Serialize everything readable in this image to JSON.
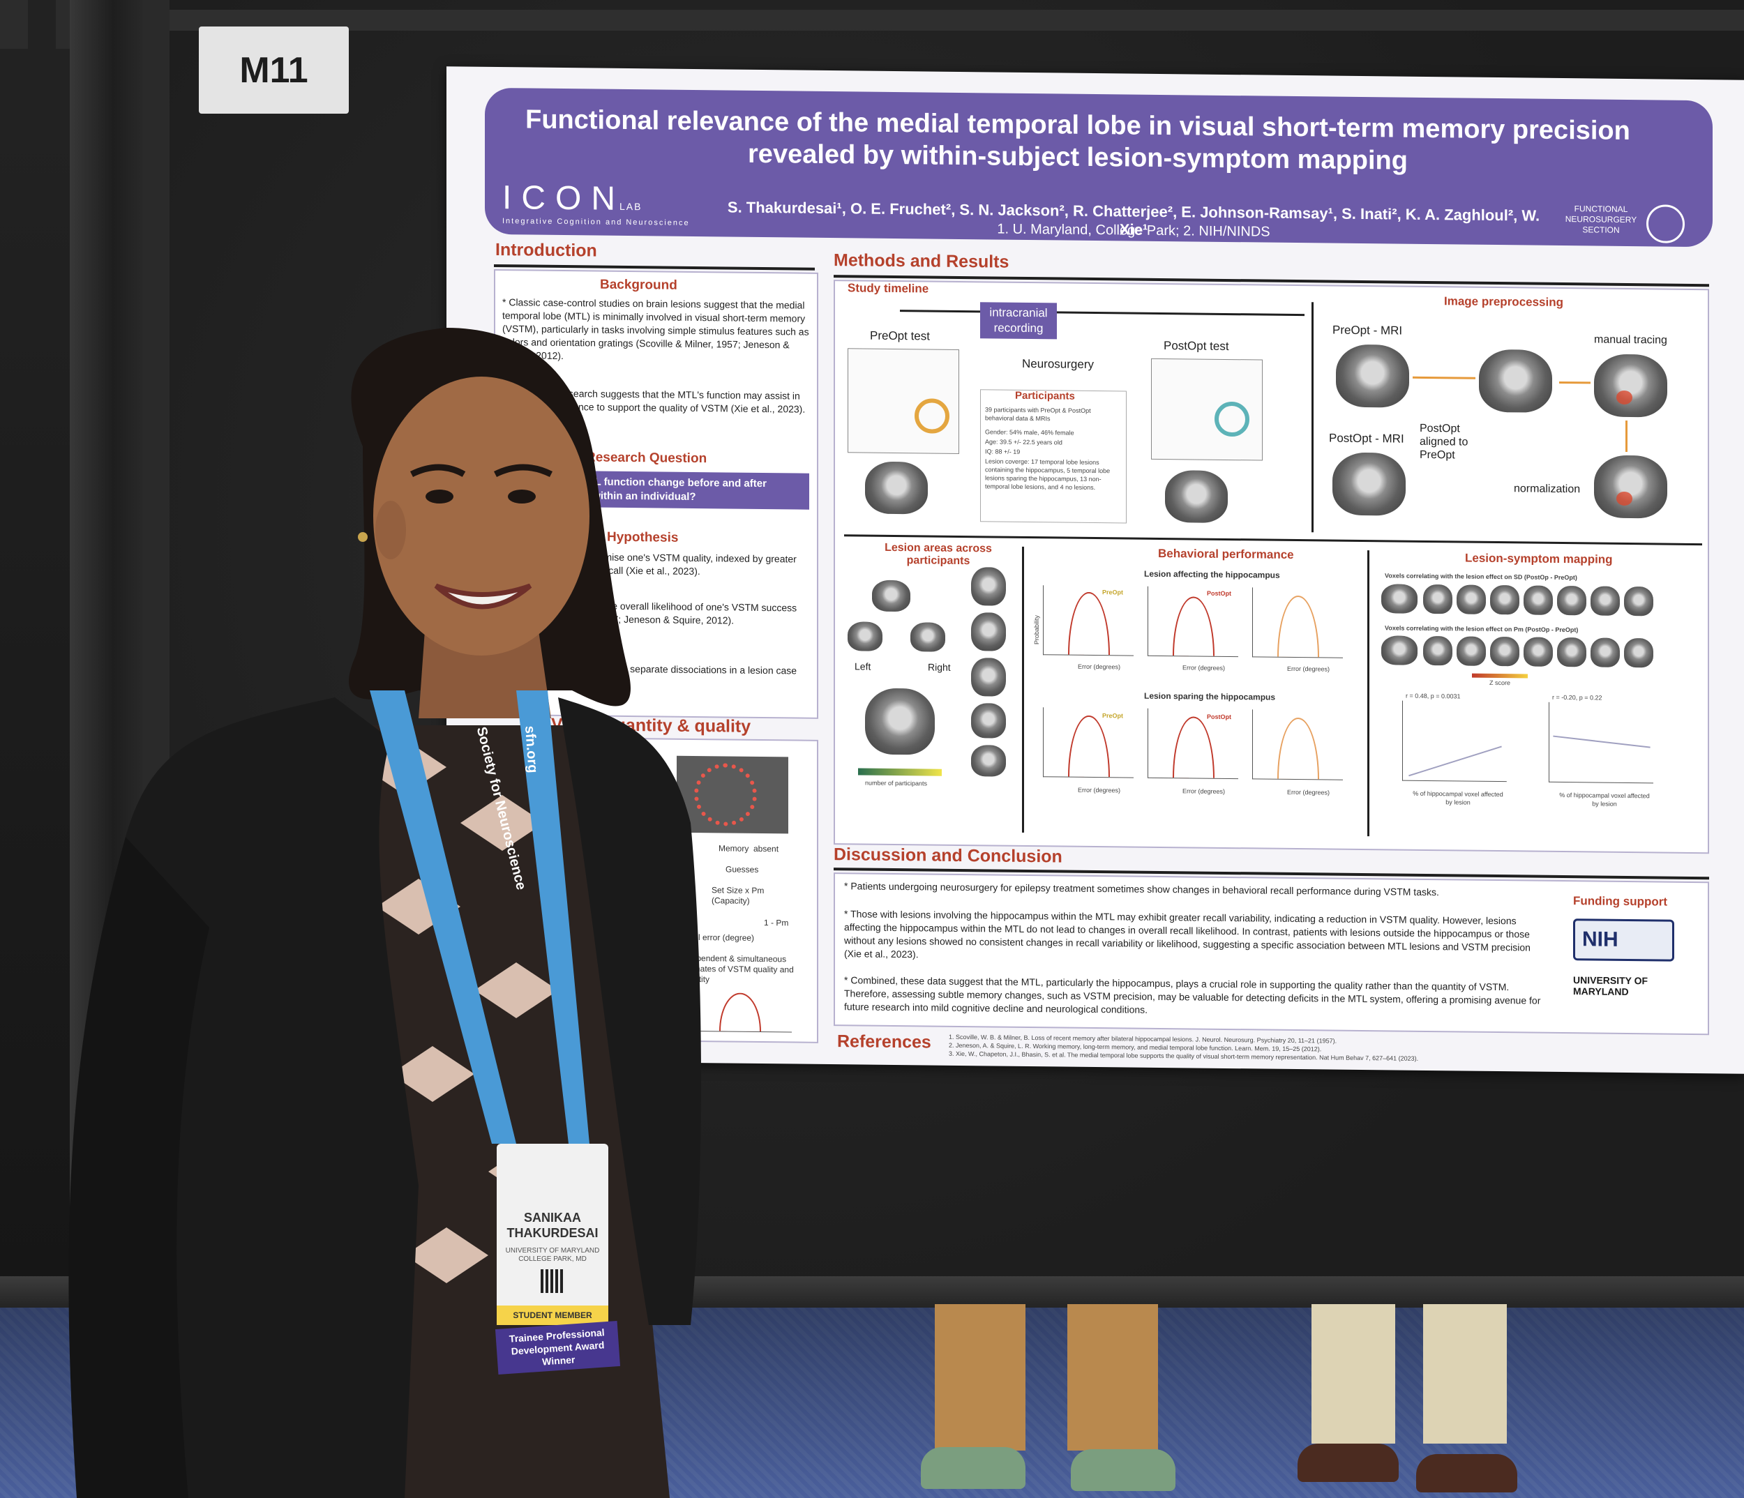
{
  "board_tag": "M11",
  "poster": {
    "title_line1": "Functional relevance of the medial temporal lobe in visual short-term memory precision",
    "title_line2": "revealed by within-subject lesion-symptom mapping",
    "authors": "S. Thakurdesai¹, O. E. Fruchet², S. N. Jackson², R. Chatterjee², E. Johnson-Ramsay¹, S. Inati², K. A. Zaghloul², W. Xie¹",
    "affiliations": "1. U. Maryland, College Park; 2. NIH/NINDS",
    "logo_left": "ICON",
    "logo_left_suffix": "LAB",
    "logo_left_sub": "Integrative Cognition and Neuroscience",
    "logo_right": "FUNCTIONAL NEUROSURGERY SECTION",
    "introduction": {
      "heading": "Introduction",
      "background_heading": "Background",
      "background_text_1": "* Classic case-control studies on brain lesions suggest that the medial temporal lobe (MTL) is minimally involved in visual short-term memory (VSTM), particularly in tasks involving simple stimulus features such as colors and orientation gratings (Scoville & Milner, 1957; Jeneson & Squire, 2012).",
      "background_text_2": "* Intracranial research suggests that the MTL's function may assist in reducing interference to support the quality of VSTM (Xie et al., 2023).",
      "research_question_heading": "Research Question",
      "research_question": "Does MTL function change before and after surgery within an individual?",
      "hypothesis_heading": "Hypothesis",
      "hypothesis_1": "MTL lesions compromise one's VSTM quality, indexed by greater variability in VSTM recall (Xie et al., 2023).",
      "hypothesis_2": "MTL lesions reduce the overall likelihood of one's VSTM success (Scoville & Milner, 1957; Jeneson & Squire, 2012).",
      "hypothesis_3": "These effects manifest as separate dissociations in a lesion case study.",
      "quantity_heading": "VSTM quantity & quality",
      "quantity_labels": [
        "Memory",
        "absent",
        "Guesses",
        "Set Size x Pm (Capacity)",
        "1 - Pm",
        "recall error (degree)",
        "Independent & simultaneous estimates of VSTM quality and quantity"
      ]
    },
    "methods": {
      "heading": "Methods and Results",
      "study_timeline": "Study timeline",
      "intracranial": "intracranial recording",
      "preopt_test": "PreOpt test",
      "postopt_test": "PostOpt test",
      "neurosurgery": "Neurosurgery",
      "participants_heading": "Participants",
      "participants": [
        "39 participants with PreOpt & PostOpt behavioral data & MRIs",
        "Gender: 54% male, 46% female",
        "Age: 39.5 +/- 22.5 years old",
        "IQ: 88 +/- 19",
        "Lesion coverge: 17 temporal lobe lesions containing the hippocampus, 5 temporal lobe lesions sparing the hippocampus, 13 non-temporal lobe lesions, and 4 no lesions."
      ],
      "image_preprocessing": "Image preprocessing",
      "preopt_mri": "PreOpt - MRI",
      "postopt_mri": "PostOpt - MRI",
      "aligned": "PostOpt aligned to PreOpt",
      "manual_tracing": "manual tracing",
      "normalization": "normalization",
      "lesion_areas": "Lesion areas across participants",
      "left": "Left",
      "right": "Right",
      "number_of_participants": "number of participants",
      "behavioral_performance": "Behavioral performance",
      "lesion_affecting": "Lesion affecting the hippocampus",
      "lesion_sparing": "Lesion sparing the hippocampus",
      "preopt": "PreOpt",
      "postopt": "PostOpt",
      "error_degrees": "Error (degrees)",
      "probability": "Probability",
      "lesion_symptom": "Lesion-symptom mapping",
      "voxels_sd": "Voxels correlating with the lesion effect on SD (PostOp - PreOpt)",
      "voxels_pm": "Voxels correlating with the lesion effect on Pm (PostOp - PreOpt)",
      "z_score": "Z score",
      "stat_1": "r = 0.48, p = 0.0031",
      "stat_2": "r = -0.20, p = 0.22",
      "x_label_hippo": "% of hippocampal voxel affected by lesion"
    },
    "discussion": {
      "heading": "Discussion and Conclusion",
      "point_1": "* Patients undergoing neurosurgery for epilepsy treatment sometimes show changes in behavioral recall performance during VSTM tasks.",
      "point_2": "* Those with lesions involving the hippocampus within the MTL may exhibit greater recall variability, indicating a reduction in VSTM quality. However, lesions affecting the hippocampus within the MTL do not lead to changes in overall recall likelihood. In contrast, patients with lesions outside the hippocampus or those without any lesions showed no consistent changes in recall variability or likelihood, suggesting a specific association between MTL lesions and VSTM precision (Xie et al., 2023).",
      "point_3": "* Combined, these data suggest that the MTL, particularly the hippocampus, plays a crucial role in supporting the quality rather than the quantity of VSTM. Therefore, assessing subtle memory changes, such as VSTM precision, may be valuable for detecting deficits in the MTL system, offering a promising avenue for future research into mild cognitive decline and neurological conditions.",
      "funding_heading": "Funding support",
      "funding_nih": "NIH",
      "funding_umd": "UNIVERSITY OF MARYLAND"
    },
    "references": {
      "heading": "References",
      "ref_1": "1. Scoville, W. B. & Milner, B. Loss of recent memory after bilateral hippocampal lesions. J. Neurol. Neurosurg. Psychiatry 20, 11–21 (1957).",
      "ref_2": "2. Jeneson, A. & Squire, L. R. Working memory, long-term memory, and medial temporal lobe function. Learn. Mem. 19, 15–25 (2012).",
      "ref_3": "3. Xie, W., Chapeton, J.I., Bhasin, S. et al. The medial temporal lobe supports the quality of visual short-term memory representation. Nat Hum Behav 7, 627–641 (2023)."
    }
  },
  "badge": {
    "name_first": "SANIKAA",
    "name_last": "THAKURDESAI",
    "institution": "UNIVERSITY OF MARYLAND COLLEGE PARK, MD",
    "member": "STUDENT MEMBER",
    "award": "Trainee Professional Development Award Winner"
  },
  "lanyard": {
    "text_1": "Society for Neuroscience",
    "text_2": "sfn.org"
  },
  "colors": {
    "poster_purple": "#6c5ba8",
    "heading_red": "#b5412c",
    "carpet_blue": "#4a5f9c",
    "jacket": "#1a1a1a"
  }
}
